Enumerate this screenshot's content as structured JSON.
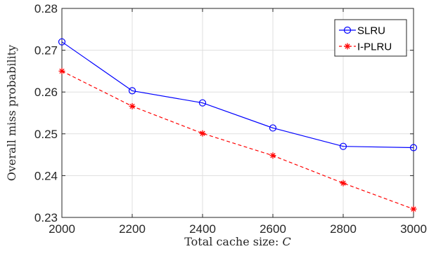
{
  "chart_data": {
    "type": "line",
    "title": "",
    "xlabel": "Total cache size: ",
    "xlabel_var": "C",
    "ylabel": "Overall miss probability",
    "x": [
      2000,
      2200,
      2400,
      2600,
      2800,
      3000
    ],
    "xlim": [
      2000,
      3000
    ],
    "ylim": [
      0.23,
      0.28
    ],
    "xticks": [
      "2000",
      "2200",
      "2400",
      "2600",
      "2800",
      "3000"
    ],
    "yticks": [
      "0.23",
      "0.24",
      "0.25",
      "0.26",
      "0.27",
      "0.28"
    ],
    "grid": true,
    "legend_position": "top-right",
    "series": [
      {
        "name": "SLRU",
        "values": [
          0.272,
          0.2603,
          0.2574,
          0.2514,
          0.247,
          0.2467
        ],
        "color": "#0000ff",
        "marker": "circle",
        "line": "solid"
      },
      {
        "name": "I-PLRU",
        "values": [
          0.265,
          0.2566,
          0.2501,
          0.2448,
          0.2382,
          0.232
        ],
        "color": "#ff0000",
        "marker": "asterisk",
        "line": "dashed"
      }
    ]
  }
}
